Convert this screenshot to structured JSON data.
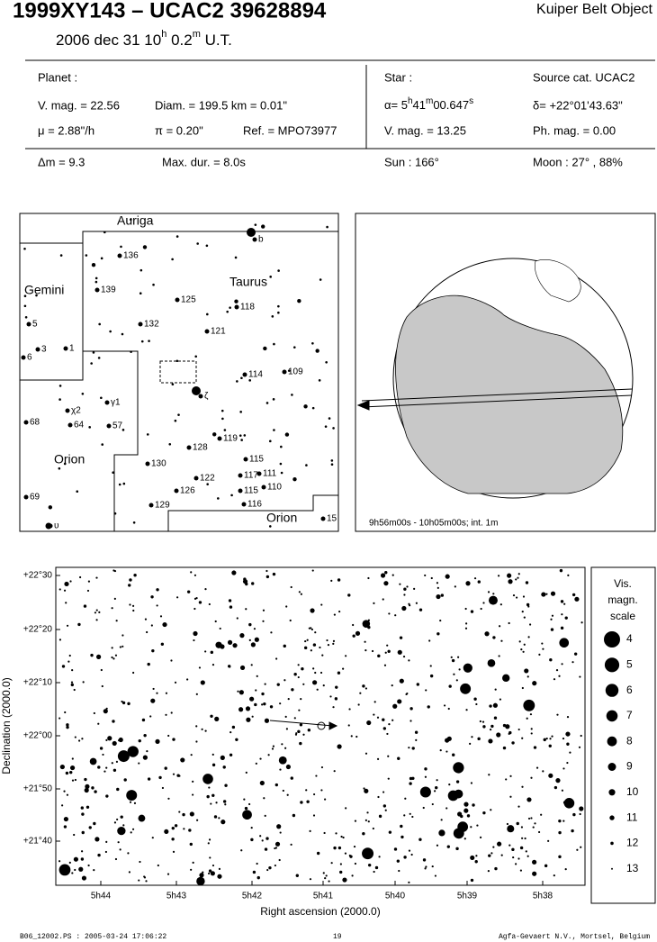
{
  "header": {
    "title": "1999XY143  –  UCAC2 39628894",
    "object_class": "Kuiper Belt Object",
    "date_parts": [
      "2006 dec 31  10",
      "h",
      " 0.2",
      "m",
      " U.T."
    ]
  },
  "info": {
    "planet_label": "Planet :",
    "planet_vmag": "V. mag. = 22.56",
    "diameter": "Diam. = 199.5 km = 0.01\"",
    "motion": "μ =  2.88\"/h",
    "parallax": "π =  0.20\"",
    "reference": "Ref. = MPO73977",
    "star_label": "Star :",
    "source_cat": "Source cat.  UCAC2",
    "ra_parts": [
      "α=  5",
      "h",
      "41",
      "m",
      "00.647",
      "s"
    ],
    "dec": "δ= +22°01'43.63\"",
    "star_vmag": "V. mag. = 13.25",
    "phot_mag": "Ph. mag. =  0.00",
    "delta_mag": "Δm = 9.3",
    "max_duration": "Max. dur. = 8.0s",
    "sun": "Sun : 166°",
    "moon": "Moon :  27° , 88%"
  },
  "finder": {
    "labels": [
      "Auriga",
      "b",
      "136",
      "139",
      "Gemini",
      "Taurus",
      "125",
      "118",
      "132",
      "121",
      "5",
      "3",
      "1",
      "6",
      "114",
      "109",
      "ζ",
      "γ1",
      "χ2",
      "68",
      "64",
      "57",
      "119",
      "128",
      "115",
      "Orion",
      "130",
      "111",
      "117",
      "122",
      "110",
      "126",
      "115",
      "116",
      "129",
      "69",
      "Orion",
      "υ",
      "15"
    ]
  },
  "globe": {
    "caption": "9h56m00s - 10h05m00s; int. 1m"
  },
  "star_chart": {
    "y_ticks": [
      "+22°30",
      "+22°20",
      "+22°10",
      "+22°00",
      "+21°50",
      "+21°40"
    ],
    "x_ticks": [
      "5h44",
      "5h43",
      "5h42",
      "5h41",
      "5h40",
      "5h39",
      "5h38"
    ],
    "x_label": "Right ascension (2000.0)",
    "y_label": "Declination (2000.0)",
    "scale_title": [
      "Vis.",
      "magn.",
      "scale"
    ],
    "scale_mags": [
      4,
      5,
      6,
      7,
      8,
      9,
      10,
      11,
      12,
      13
    ]
  },
  "footer": {
    "left": "B06_12002.PS : 2005-03-24 17:06:22",
    "page": 19,
    "right": "Agfa-Gevaert N.V., Mortsel, Belgium"
  }
}
